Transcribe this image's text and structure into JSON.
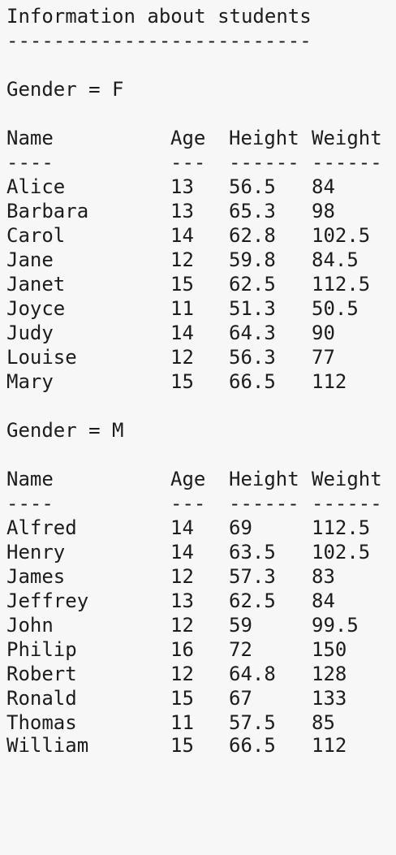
{
  "report": {
    "title": "Information about students",
    "title_rule": "--------------------------",
    "columns": {
      "name": "Name",
      "age": "Age",
      "height": "Height",
      "weight": "Weight"
    },
    "column_rules": {
      "name": "----",
      "age": "---",
      "height": "------",
      "weight": "------"
    },
    "groups": [
      {
        "label": "Gender = F",
        "rows": [
          {
            "name": "Alice",
            "age": "13",
            "height": "56.5",
            "weight": "84"
          },
          {
            "name": "Barbara",
            "age": "13",
            "height": "65.3",
            "weight": "98"
          },
          {
            "name": "Carol",
            "age": "14",
            "height": "62.8",
            "weight": "102.5"
          },
          {
            "name": "Jane",
            "age": "12",
            "height": "59.8",
            "weight": "84.5"
          },
          {
            "name": "Janet",
            "age": "15",
            "height": "62.5",
            "weight": "112.5"
          },
          {
            "name": "Joyce",
            "age": "11",
            "height": "51.3",
            "weight": "50.5"
          },
          {
            "name": "Judy",
            "age": "14",
            "height": "64.3",
            "weight": "90"
          },
          {
            "name": "Louise",
            "age": "12",
            "height": "56.3",
            "weight": "77"
          },
          {
            "name": "Mary",
            "age": "15",
            "height": "66.5",
            "weight": "112"
          }
        ]
      },
      {
        "label": "Gender = M",
        "rows": [
          {
            "name": "Alfred",
            "age": "14",
            "height": "69",
            "weight": "112.5"
          },
          {
            "name": "Henry",
            "age": "14",
            "height": "63.5",
            "weight": "102.5"
          },
          {
            "name": "James",
            "age": "12",
            "height": "57.3",
            "weight": "83"
          },
          {
            "name": "Jeffrey",
            "age": "13",
            "height": "62.5",
            "weight": "84"
          },
          {
            "name": "John",
            "age": "12",
            "height": "59",
            "weight": "99.5"
          },
          {
            "name": "Philip",
            "age": "16",
            "height": "72",
            "weight": "150"
          },
          {
            "name": "Robert",
            "age": "12",
            "height": "64.8",
            "weight": "128"
          },
          {
            "name": "Ronald",
            "age": "15",
            "height": "67",
            "weight": "133"
          },
          {
            "name": "Thomas",
            "age": "11",
            "height": "57.5",
            "weight": "85"
          },
          {
            "name": "William",
            "age": "15",
            "height": "66.5",
            "weight": "112"
          }
        ]
      }
    ]
  }
}
